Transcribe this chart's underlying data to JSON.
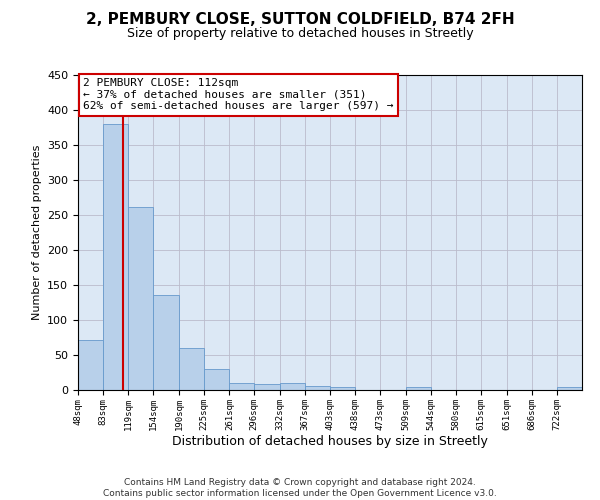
{
  "title": "2, PEMBURY CLOSE, SUTTON COLDFIELD, B74 2FH",
  "subtitle": "Size of property relative to detached houses in Streetly",
  "xlabel": "Distribution of detached houses by size in Streetly",
  "ylabel": "Number of detached properties",
  "footer_line1": "Contains HM Land Registry data © Crown copyright and database right 2024.",
  "footer_line2": "Contains public sector information licensed under the Open Government Licence v3.0.",
  "annotation_line1": "2 PEMBURY CLOSE: 112sqm",
  "annotation_line2": "← 37% of detached houses are smaller (351)",
  "annotation_line3": "62% of semi-detached houses are larger (597) →",
  "property_size": 112,
  "bin_edges": [
    48,
    83,
    119,
    154,
    190,
    225,
    261,
    296,
    332,
    367,
    403,
    438,
    473,
    509,
    544,
    580,
    615,
    651,
    686,
    722,
    757
  ],
  "bar_values": [
    72,
    380,
    261,
    136,
    60,
    30,
    10,
    9,
    10,
    6,
    5,
    0,
    0,
    4,
    0,
    0,
    0,
    0,
    0,
    4
  ],
  "bar_color": "#b8d0ea",
  "bar_edge_color": "#6699cc",
  "highlight_line_color": "#cc0000",
  "ylim": [
    0,
    450
  ],
  "yticks": [
    0,
    50,
    100,
    150,
    200,
    250,
    300,
    350,
    400,
    450
  ],
  "axes_bg_color": "#dce8f5",
  "background_color": "#ffffff",
  "grid_color": "#bbbbcc",
  "annotation_box_color": "#ffffff",
  "annotation_box_edge": "#cc0000",
  "title_fontsize": 11,
  "subtitle_fontsize": 9,
  "ylabel_fontsize": 8,
  "xlabel_fontsize": 9,
  "footer_fontsize": 6.5,
  "annotation_fontsize": 8,
  "ytick_fontsize": 8,
  "xtick_fontsize": 6.5
}
